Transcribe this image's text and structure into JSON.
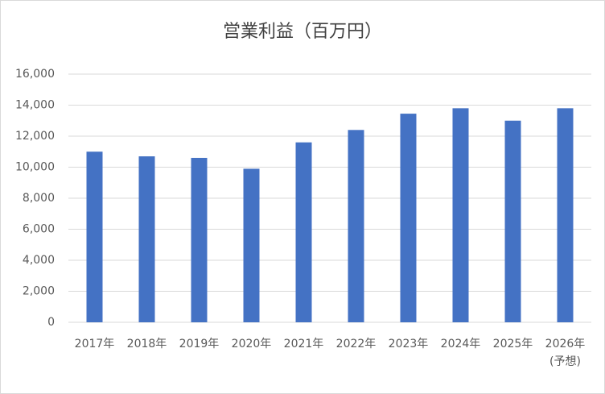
{
  "chart_data": {
    "type": "bar",
    "title": "営業利益（百万円）",
    "categories": [
      "2017年",
      "2018年",
      "2019年",
      "2020年",
      "2021年",
      "2022年",
      "2023年",
      "2024年",
      "2025年",
      "2026年\n(予想)"
    ],
    "values": [
      11000,
      10700,
      10600,
      9900,
      11600,
      12400,
      13450,
      13800,
      13000,
      13800
    ],
    "color": "#4472c4",
    "ylim": [
      0,
      16000
    ],
    "yticks": [
      0,
      {
        "value": 2000,
        "label": "2,000"
      },
      {
        "value": 4000,
        "label": "4,000"
      },
      {
        "value": 6000,
        "label": "6,000"
      },
      {
        "value": 8000,
        "label": "8,000"
      },
      {
        "value": 10000,
        "label": "10,000"
      },
      {
        "value": 12000,
        "label": "12,000"
      },
      {
        "value": 14000,
        "label": "14,000"
      },
      {
        "value": 16000,
        "label": "16,000"
      }
    ],
    "grid": true
  }
}
